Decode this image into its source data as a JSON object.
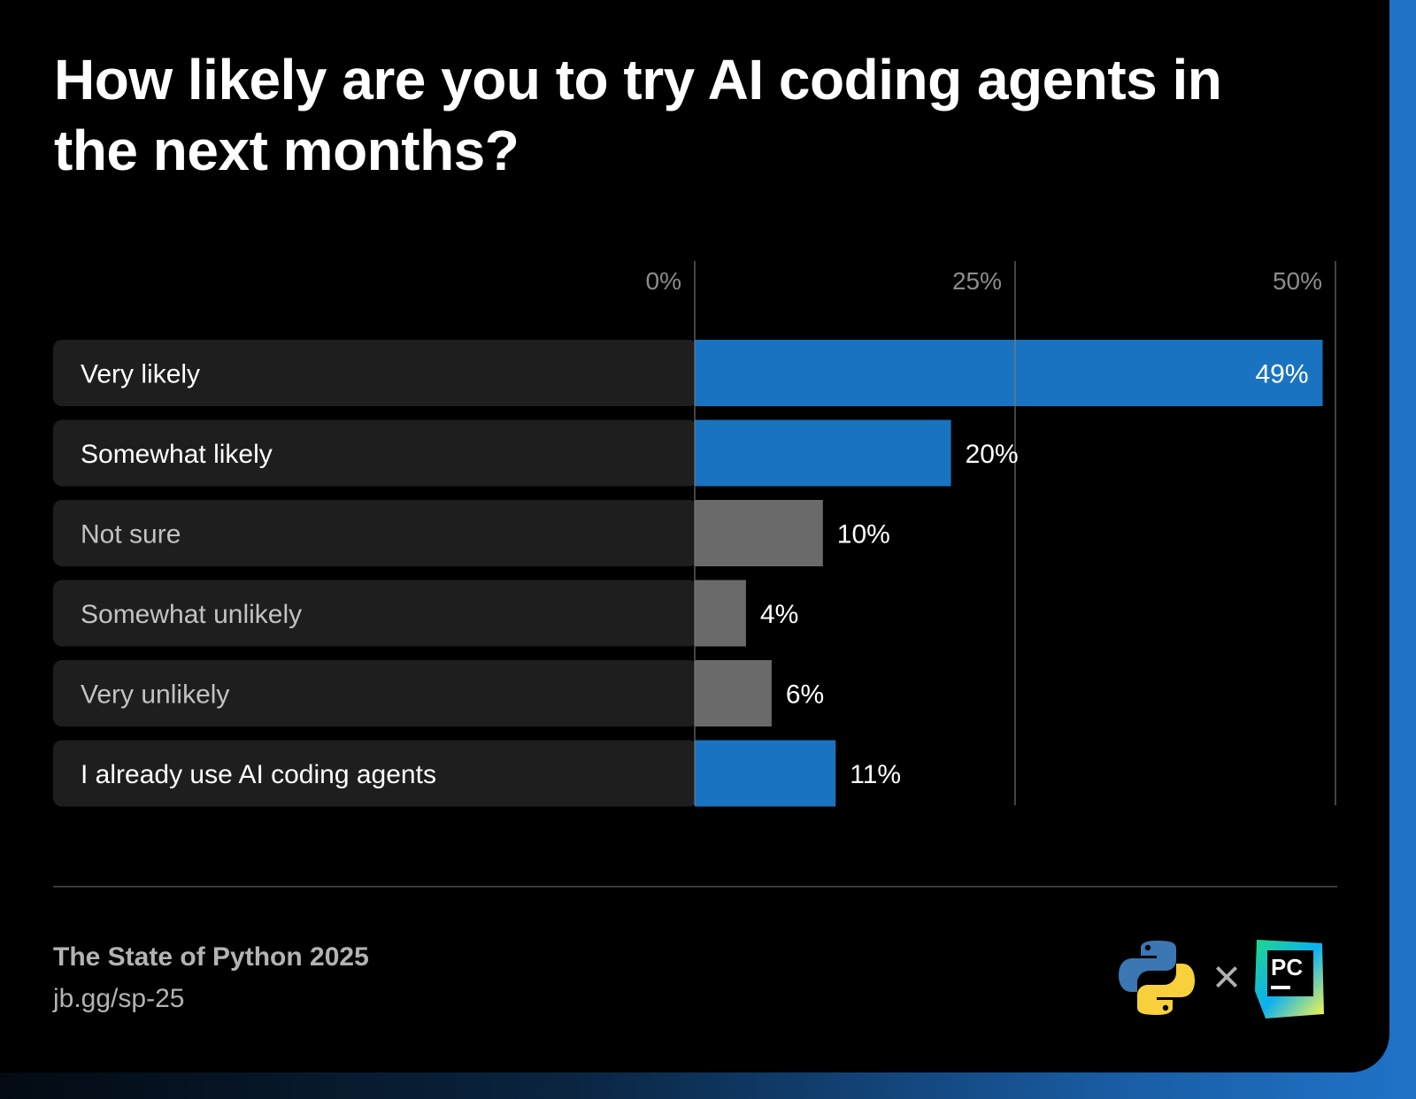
{
  "title": "How likely are you to try AI coding agents in the next months?",
  "source": {
    "title": "The State of Python 2025",
    "link": "jb.gg/sp-25"
  },
  "logos": {
    "separator": "×",
    "pycharm_letters": "PC",
    "python_icon": "python-logo-icon",
    "pycharm_icon": "pycharm-logo-icon"
  },
  "colors": {
    "accent": "#1a73c0",
    "neutral": "#6a6a6a",
    "row_bg": "#1e1e1e",
    "background": "#000000"
  },
  "chart_data": {
    "type": "bar",
    "orientation": "horizontal",
    "categories": [
      "Very likely",
      "Somewhat likely",
      "Not sure",
      "Somewhat unlikely",
      "Very unlikely",
      "I already use AI coding agents"
    ],
    "values": [
      49,
      20,
      10,
      4,
      6,
      11
    ],
    "value_labels": [
      "49%",
      "20%",
      "10%",
      "4%",
      "6%",
      "11%"
    ],
    "highlight": [
      true,
      true,
      false,
      false,
      false,
      true
    ],
    "ticks": [
      0,
      25,
      50
    ],
    "tick_labels": [
      "0%",
      "25%",
      "50%"
    ],
    "xlim": [
      0,
      50
    ],
    "grid": true
  }
}
